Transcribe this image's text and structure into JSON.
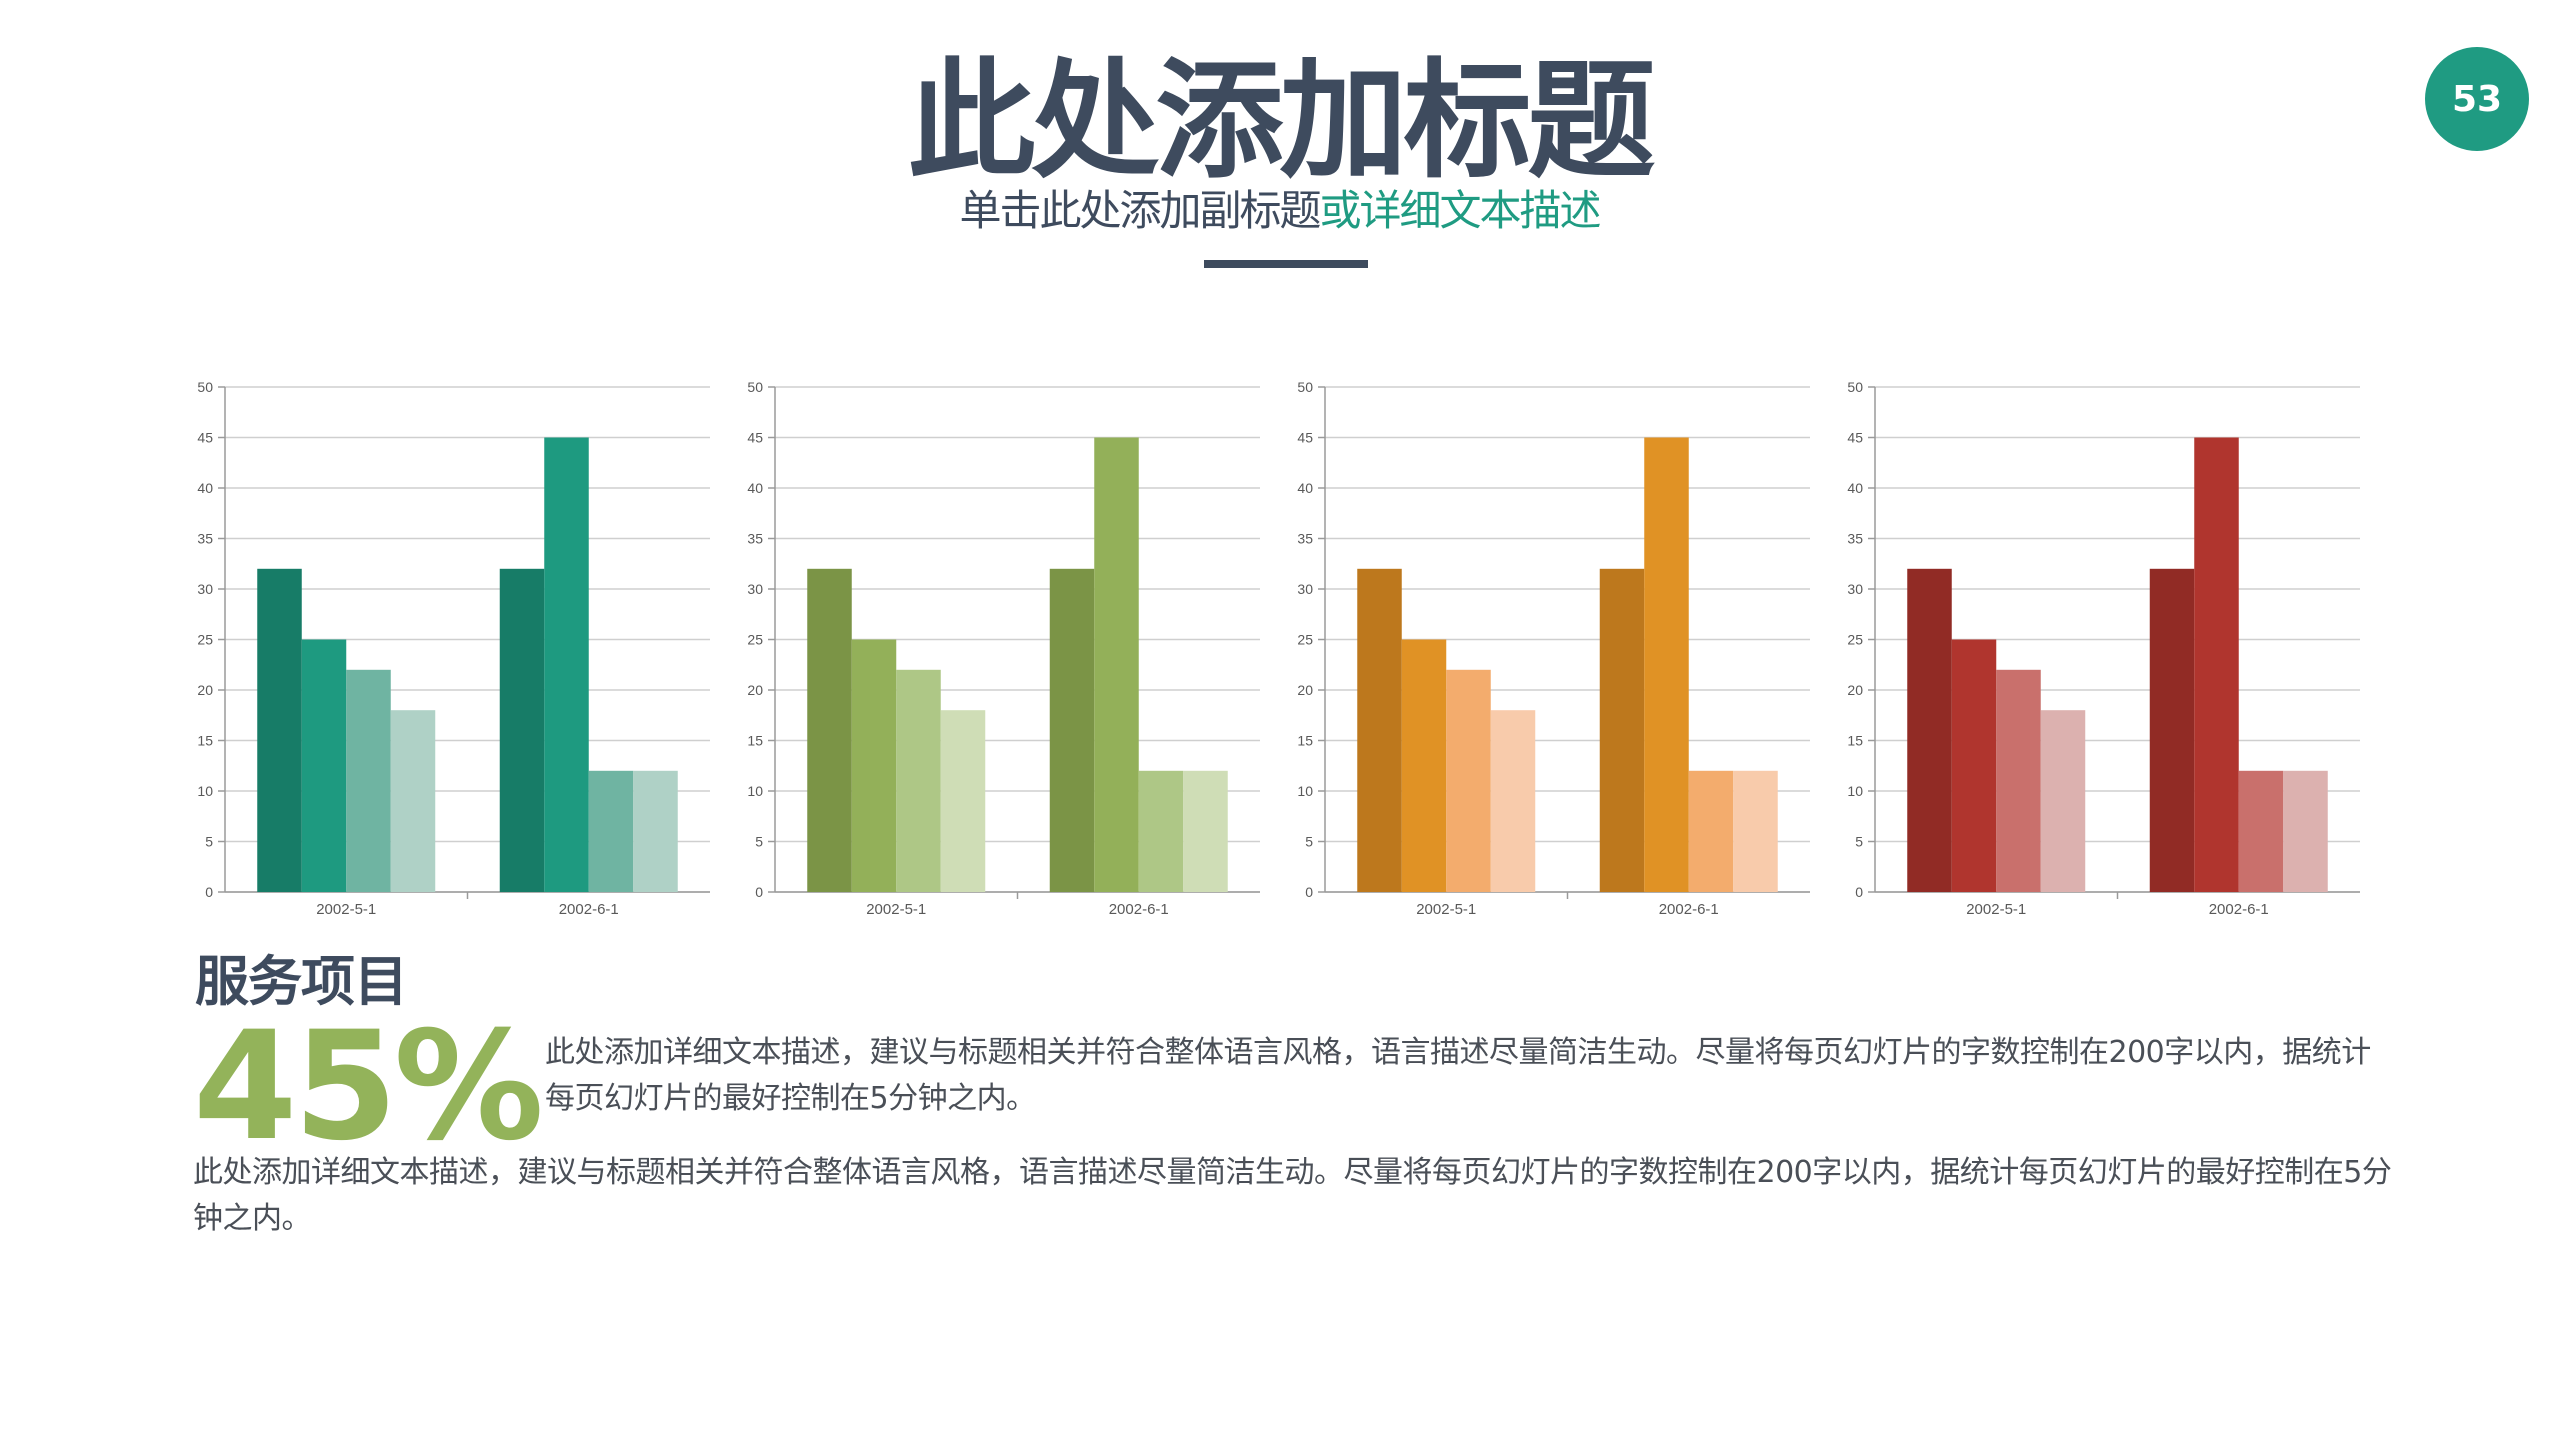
{
  "page_number": "53",
  "title": "此处添加标题",
  "subtitle": {
    "part1": "单击此处添加副标题",
    "part2": "或详细文本描述"
  },
  "section_heading": "服务项目",
  "big_percent": "45%",
  "paragraph_1": "此处添加详细文本描述，建议与标题相关并符合整体语言风格，语言描述尽量简洁生动。尽量将每页幻灯片的字数控制在200字以内，据统计每页幻灯片的最好控制在5分钟之内。",
  "paragraph_2": "此处添加详细文本描述，建议与标题相关并符合整体语言风格，语言描述尽量简洁生动。尽量将每页幻灯片的字数控制在200字以内，据统计每页幻灯片的最好控制在5分钟之内。",
  "colors": {
    "title": "#3e4b5e",
    "accent": "#1f9b82",
    "percent": "#93b35a"
  },
  "chart_data": [
    {
      "type": "bar",
      "categories": [
        "2002-5-1",
        "2002-6-1"
      ],
      "series": [
        {
          "values": [
            32,
            32
          ],
          "color": "#177c67"
        },
        {
          "values": [
            25,
            45
          ],
          "color": "#1e9a80"
        },
        {
          "values": [
            22,
            12
          ],
          "color": "#6fb4a2"
        },
        {
          "values": [
            18,
            12
          ],
          "color": "#afd1c6"
        }
      ],
      "ylim": [
        0,
        50
      ],
      "yticks": [
        "0",
        "5",
        "10",
        "15",
        "20",
        "25",
        "30",
        "35",
        "40",
        "45",
        "50"
      ],
      "grid": true
    },
    {
      "type": "bar",
      "categories": [
        "2002-5-1",
        "2002-6-1"
      ],
      "series": [
        {
          "values": [
            32,
            32
          ],
          "color": "#7b9446"
        },
        {
          "values": [
            25,
            45
          ],
          "color": "#93b059"
        },
        {
          "values": [
            22,
            12
          ],
          "color": "#aec786"
        },
        {
          "values": [
            18,
            12
          ],
          "color": "#cfddb6"
        }
      ],
      "ylim": [
        0,
        50
      ],
      "yticks": [
        "0",
        "5",
        "10",
        "15",
        "20",
        "25",
        "30",
        "35",
        "40",
        "45",
        "50"
      ],
      "grid": true
    },
    {
      "type": "bar",
      "categories": [
        "2002-5-1",
        "2002-6-1"
      ],
      "series": [
        {
          "values": [
            32,
            32
          ],
          "color": "#bd781d"
        },
        {
          "values": [
            25,
            45
          ],
          "color": "#e09225"
        },
        {
          "values": [
            22,
            12
          ],
          "color": "#f3ac6d"
        },
        {
          "values": [
            18,
            12
          ],
          "color": "#f8cbab"
        }
      ],
      "ylim": [
        0,
        50
      ],
      "yticks": [
        "0",
        "5",
        "10",
        "15",
        "20",
        "25",
        "30",
        "35",
        "40",
        "45",
        "50"
      ],
      "grid": true
    },
    {
      "type": "bar",
      "categories": [
        "2002-5-1",
        "2002-6-1"
      ],
      "series": [
        {
          "values": [
            32,
            32
          ],
          "color": "#912b25"
        },
        {
          "values": [
            25,
            45
          ],
          "color": "#b0352e"
        },
        {
          "values": [
            22,
            12
          ],
          "color": "#c9706c"
        },
        {
          "values": [
            18,
            12
          ],
          "color": "#dcb1af"
        }
      ],
      "ylim": [
        0,
        50
      ],
      "yticks": [
        "0",
        "5",
        "10",
        "15",
        "20",
        "25",
        "30",
        "35",
        "40",
        "45",
        "50"
      ],
      "grid": true
    }
  ]
}
